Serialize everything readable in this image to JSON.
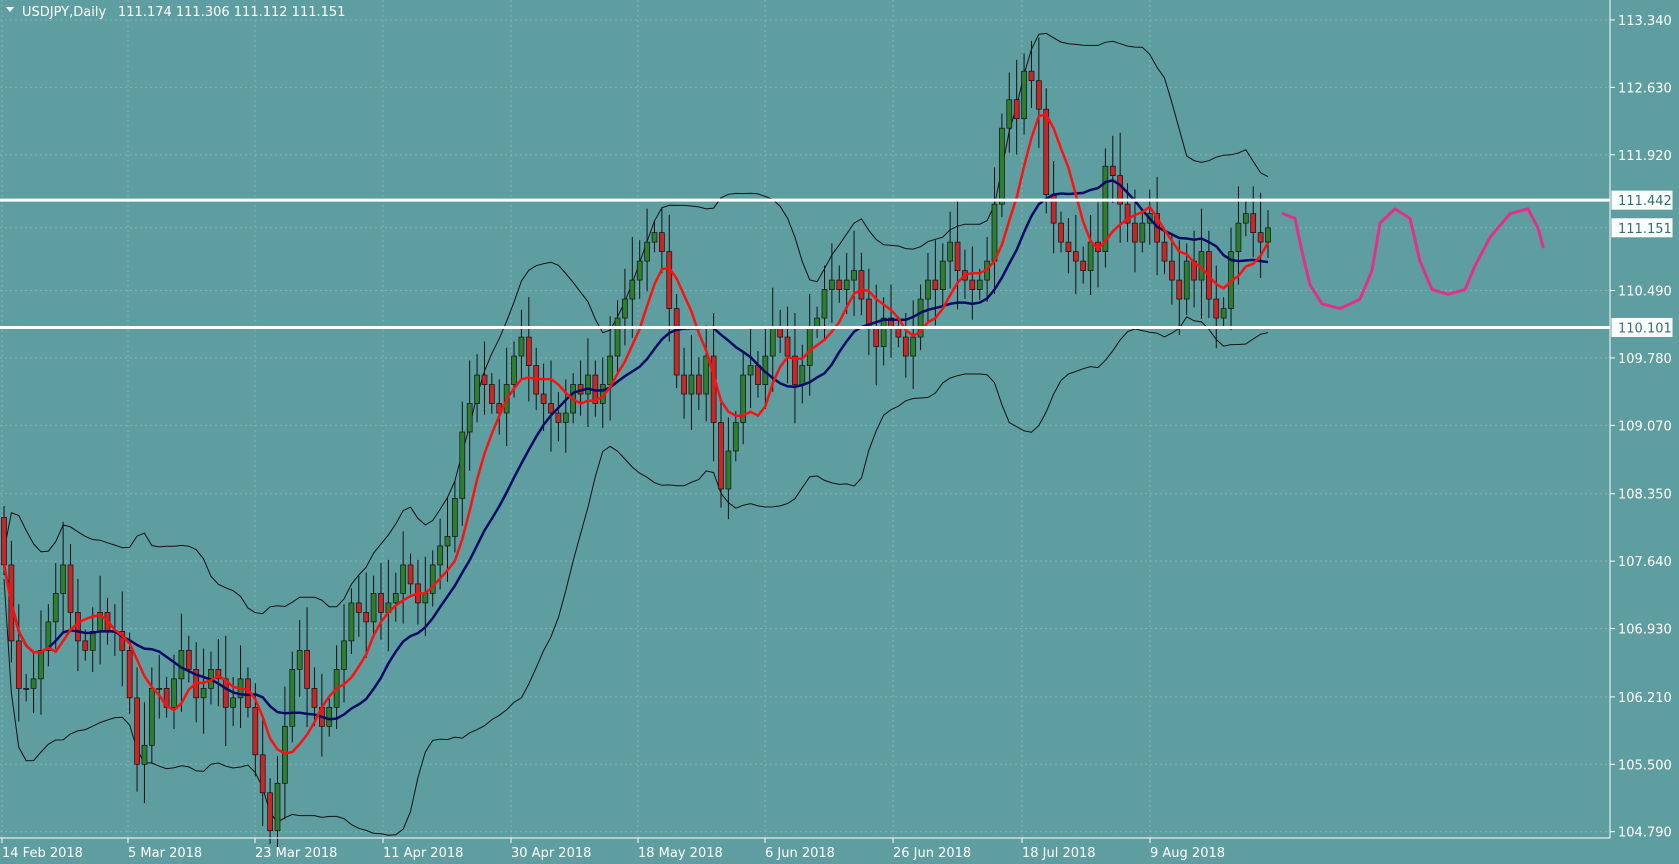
{
  "header": {
    "symbol": "USDJPY,Daily",
    "ohlc": "111.174 111.306 111.112 111.151"
  },
  "colors": {
    "background": "#5f9ea0",
    "grid": "#7fb3b5",
    "bull": "#2e7d32",
    "bear": "#c62828",
    "candle_outline": "#111111",
    "ma_fast": "#ff1010",
    "ma_slow": "#0b0b66",
    "bands": "#111111",
    "levels": "#ffffff",
    "projection": "#e0308a",
    "text": "#ffffff"
  },
  "chart_data": {
    "type": "candlestick",
    "title": "USDJPY,Daily",
    "ylim": [
      104.45,
      113.55
    ],
    "price_ticks": [
      "113.340",
      "112.630",
      "111.920",
      "111.442",
      "111.151",
      "110.490",
      "110.101",
      "109.780",
      "109.070",
      "108.350",
      "107.640",
      "106.930",
      "106.210",
      "105.500",
      "104.790"
    ],
    "date_ticks": [
      "14 Feb 2018",
      "5 Mar 2018",
      "23 Mar 2018",
      "11 Apr 2018",
      "30 Apr 2018",
      "18 May 2018",
      "6 Jun 2018",
      "26 Jun 2018",
      "18 Jul 2018",
      "9 Aug 2018"
    ],
    "horizontal_levels": [
      {
        "label": "111.442",
        "value": 111.442
      },
      {
        "label": "110.101",
        "value": 110.101
      }
    ],
    "current_price": {
      "label": "111.151",
      "value": 111.151
    },
    "closes": [
      107.6,
      106.8,
      106.3,
      106.3,
      106.4,
      106.7,
      107.0,
      107.3,
      107.6,
      107.1,
      106.8,
      106.7,
      106.9,
      107.1,
      106.9,
      106.9,
      106.7,
      106.2,
      105.5,
      105.7,
      106.3,
      106.3,
      106.1,
      106.4,
      106.7,
      106.5,
      106.2,
      106.3,
      106.5,
      106.4,
      106.1,
      106.2,
      106.4,
      106.1,
      105.6,
      105.2,
      104.8,
      105.3,
      105.9,
      106.5,
      106.7,
      106.3,
      106.1,
      105.9,
      106.1,
      106.5,
      106.8,
      107.2,
      107.1,
      107.0,
      107.3,
      107.1,
      107.2,
      107.3,
      107.6,
      107.4,
      107.2,
      107.3,
      107.6,
      107.8,
      107.9,
      108.3,
      109.0,
      109.3,
      109.6,
      109.5,
      109.3,
      109.2,
      109.5,
      109.8,
      110.0,
      109.7,
      109.4,
      109.3,
      109.2,
      109.1,
      109.2,
      109.5,
      109.4,
      109.6,
      109.3,
      109.5,
      109.8,
      110.2,
      110.4,
      110.6,
      110.8,
      111.0,
      111.1,
      110.9,
      110.3,
      109.6,
      109.4,
      109.6,
      109.4,
      109.8,
      109.1,
      108.4,
      108.8,
      109.1,
      109.6,
      109.7,
      109.5,
      109.8,
      110.1,
      110.0,
      109.8,
      109.5,
      109.7,
      110.1,
      110.2,
      110.5,
      110.6,
      110.5,
      110.6,
      110.7,
      110.4,
      110.1,
      109.9,
      110.2,
      110.1,
      110.0,
      109.8,
      110.0,
      110.4,
      110.6,
      110.5,
      110.8,
      111.0,
      110.7,
      110.6,
      110.5,
      110.6,
      110.8,
      111.4,
      112.2,
      112.5,
      112.3,
      112.8,
      112.7,
      112.4,
      111.5,
      111.2,
      111.0,
      110.9,
      110.8,
      110.7,
      111.0,
      110.9,
      111.8,
      111.7,
      111.4,
      111.2,
      111.0,
      111.2,
      111.3,
      111.0,
      110.8,
      110.6,
      110.4,
      110.8,
      110.6,
      110.9,
      110.4,
      110.2,
      110.3,
      110.9,
      111.2,
      111.3,
      111.1,
      111.0,
      111.15
    ],
    "series": [
      {
        "name": "Bollinger Bands (20)"
      },
      {
        "name": "Moving Average (fast)"
      },
      {
        "name": "Moving Average (slow)"
      }
    ]
  }
}
